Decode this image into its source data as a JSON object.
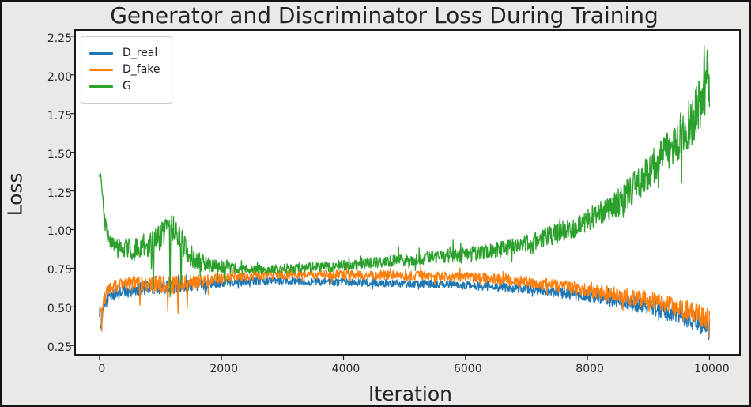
{
  "chart_data": {
    "type": "line",
    "title": "Generator and Discriminator Loss During Training",
    "xlabel": "Iteration",
    "ylabel": "Loss",
    "x_ticks": [
      0,
      2000,
      4000,
      6000,
      8000,
      10000
    ],
    "y_ticks": [
      0.25,
      0.5,
      0.75,
      1.0,
      1.25,
      1.5,
      1.75,
      2.0,
      2.25
    ],
    "xlim": [
      -400,
      10500
    ],
    "ylim": [
      0.19,
      2.29
    ],
    "grid": false,
    "legend_position": "upper-left",
    "colors": {
      "figure_background": "#e9e9e7",
      "axes_background": "#ffffff",
      "spine": "#000000",
      "text": "#232323"
    },
    "series": [
      {
        "name": "D_real",
        "color": "#1f77b4",
        "trend": [
          [
            0,
            0.48
          ],
          [
            25,
            0.385
          ],
          [
            60,
            0.47
          ],
          [
            100,
            0.53
          ],
          [
            150,
            0.565
          ],
          [
            250,
            0.585
          ],
          [
            400,
            0.6
          ],
          [
            600,
            0.615
          ],
          [
            900,
            0.625
          ],
          [
            1200,
            0.63
          ],
          [
            1600,
            0.645
          ],
          [
            2000,
            0.66
          ],
          [
            2400,
            0.67
          ],
          [
            3000,
            0.668
          ],
          [
            3600,
            0.662
          ],
          [
            4200,
            0.658
          ],
          [
            4800,
            0.652
          ],
          [
            5400,
            0.648
          ],
          [
            6000,
            0.64
          ],
          [
            6500,
            0.628
          ],
          [
            7000,
            0.615
          ],
          [
            7500,
            0.595
          ],
          [
            8000,
            0.568
          ],
          [
            8500,
            0.538
          ],
          [
            9000,
            0.502
          ],
          [
            9400,
            0.458
          ],
          [
            9700,
            0.42
          ],
          [
            10000,
            0.368
          ]
        ],
        "noise": [
          [
            0,
            0.05
          ],
          [
            150,
            0.04
          ],
          [
            800,
            0.045
          ],
          [
            1500,
            0.04
          ],
          [
            2500,
            0.025
          ],
          [
            5000,
            0.025
          ],
          [
            7000,
            0.03
          ],
          [
            8000,
            0.04
          ],
          [
            9000,
            0.05
          ],
          [
            10000,
            0.065
          ]
        ],
        "spikes": [
          [
            30,
            0.355
          ],
          [
            9990,
            0.29
          ]
        ]
      },
      {
        "name": "D_fake",
        "color": "#ff7f0e",
        "trend": [
          [
            0,
            0.52
          ],
          [
            25,
            0.43
          ],
          [
            60,
            0.52
          ],
          [
            100,
            0.575
          ],
          [
            150,
            0.61
          ],
          [
            250,
            0.635
          ],
          [
            400,
            0.65
          ],
          [
            600,
            0.655
          ],
          [
            900,
            0.645
          ],
          [
            1200,
            0.64
          ],
          [
            1500,
            0.655
          ],
          [
            1800,
            0.675
          ],
          [
            2200,
            0.695
          ],
          [
            2700,
            0.705
          ],
          [
            3300,
            0.71
          ],
          [
            4000,
            0.708
          ],
          [
            4700,
            0.705
          ],
          [
            5400,
            0.7
          ],
          [
            6000,
            0.692
          ],
          [
            6500,
            0.682
          ],
          [
            7000,
            0.662
          ],
          [
            7500,
            0.638
          ],
          [
            8000,
            0.608
          ],
          [
            8500,
            0.578
          ],
          [
            9000,
            0.548
          ],
          [
            9400,
            0.505
          ],
          [
            9700,
            0.465
          ],
          [
            10000,
            0.425
          ]
        ],
        "noise": [
          [
            0,
            0.05
          ],
          [
            300,
            0.04
          ],
          [
            900,
            0.055
          ],
          [
            1300,
            0.065
          ],
          [
            1700,
            0.04
          ],
          [
            2500,
            0.03
          ],
          [
            5000,
            0.03
          ],
          [
            7000,
            0.035
          ],
          [
            8000,
            0.045
          ],
          [
            9000,
            0.055
          ],
          [
            10000,
            0.075
          ]
        ],
        "spikes": [
          [
            660,
            0.51
          ],
          [
            1120,
            0.475
          ],
          [
            1290,
            0.46
          ],
          [
            1440,
            0.49
          ],
          [
            9980,
            0.3
          ]
        ]
      },
      {
        "name": "G",
        "color": "#2ca02c",
        "trend": [
          [
            0,
            1.32
          ],
          [
            15,
            1.35
          ],
          [
            40,
            1.26
          ],
          [
            70,
            1.1
          ],
          [
            110,
            1.0
          ],
          [
            160,
            0.94
          ],
          [
            220,
            0.9
          ],
          [
            300,
            0.875
          ],
          [
            400,
            0.89
          ],
          [
            500,
            0.875
          ],
          [
            600,
            0.87
          ],
          [
            700,
            0.9
          ],
          [
            800,
            0.88
          ],
          [
            900,
            0.92
          ],
          [
            1000,
            0.96
          ],
          [
            1100,
            1.0
          ],
          [
            1200,
            1.01
          ],
          [
            1300,
            0.96
          ],
          [
            1400,
            0.89
          ],
          [
            1500,
            0.83
          ],
          [
            1650,
            0.79
          ],
          [
            1800,
            0.77
          ],
          [
            2000,
            0.76
          ],
          [
            2300,
            0.745
          ],
          [
            2700,
            0.74
          ],
          [
            3200,
            0.75
          ],
          [
            3700,
            0.76
          ],
          [
            4200,
            0.775
          ],
          [
            4700,
            0.79
          ],
          [
            5200,
            0.81
          ],
          [
            5700,
            0.83
          ],
          [
            6200,
            0.85
          ],
          [
            6700,
            0.88
          ],
          [
            7200,
            0.935
          ],
          [
            7700,
            1.0
          ],
          [
            8100,
            1.08
          ],
          [
            8500,
            1.17
          ],
          [
            8900,
            1.33
          ],
          [
            9200,
            1.46
          ],
          [
            9500,
            1.6
          ],
          [
            9750,
            1.74
          ],
          [
            9900,
            1.84
          ],
          [
            10000,
            1.92
          ]
        ],
        "noise": [
          [
            0,
            0.03
          ],
          [
            100,
            0.05
          ],
          [
            500,
            0.07
          ],
          [
            1000,
            0.09
          ],
          [
            1400,
            0.08
          ],
          [
            1800,
            0.045
          ],
          [
            2500,
            0.03
          ],
          [
            4000,
            0.035
          ],
          [
            5000,
            0.04
          ],
          [
            6000,
            0.045
          ],
          [
            7000,
            0.055
          ],
          [
            8000,
            0.075
          ],
          [
            8700,
            0.1
          ],
          [
            9300,
            0.13
          ],
          [
            9700,
            0.17
          ],
          [
            10000,
            0.2
          ]
        ],
        "spikes": [
          [
            880,
            0.615
          ],
          [
            1160,
            0.565
          ],
          [
            1340,
            0.64
          ],
          [
            2050,
            0.645
          ],
          [
            9910,
            2.19
          ],
          [
            9960,
            2.16
          ]
        ]
      }
    ]
  }
}
